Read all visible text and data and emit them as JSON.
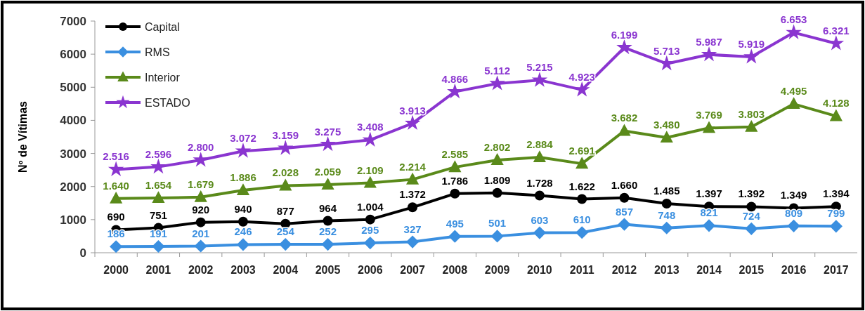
{
  "chart_data": {
    "type": "line",
    "ylabel": "Nº de Vítimas",
    "categories": [
      "2000",
      "2001",
      "2002",
      "2003",
      "2004",
      "2005",
      "2006",
      "2007",
      "2008",
      "2009",
      "2010",
      "2011",
      "2012",
      "2013",
      "2014",
      "2015",
      "2016",
      "2017"
    ],
    "ylim": [
      0,
      7000
    ],
    "yticks": [
      0,
      1000,
      2000,
      3000,
      4000,
      5000,
      6000,
      7000
    ],
    "grid": false,
    "legend": "top left",
    "series": [
      {
        "name": "Capital",
        "color": "#000000",
        "marker": "circle",
        "values": [
          690,
          751,
          920,
          940,
          877,
          964,
          1004,
          1372,
          1786,
          1809,
          1728,
          1622,
          1660,
          1485,
          1397,
          1392,
          1349,
          1394
        ],
        "value_labels": [
          "690",
          "751",
          "920",
          "940",
          "877",
          "964",
          "1.004",
          "1.372",
          "1.786",
          "1.809",
          "1.728",
          "1.622",
          "1.660",
          "1.485",
          "1.397",
          "1.392",
          "1.349",
          "1.394"
        ]
      },
      {
        "name": "RMS",
        "color": "#3a8fe0",
        "marker": "diamond",
        "values": [
          186,
          191,
          201,
          246,
          254,
          252,
          295,
          327,
          495,
          501,
          603,
          610,
          857,
          748,
          821,
          724,
          809,
          799
        ],
        "value_labels": [
          "186",
          "191",
          "201",
          "246",
          "254",
          "252",
          "295",
          "327",
          "495",
          "501",
          "603",
          "610",
          "857",
          "748",
          "821",
          "724",
          "809",
          "799"
        ]
      },
      {
        "name": "Interior",
        "color": "#5a8a1a",
        "marker": "triangle",
        "values": [
          1640,
          1654,
          1679,
          1886,
          2028,
          2059,
          2109,
          2214,
          2585,
          2802,
          2884,
          2691,
          3682,
          3480,
          3769,
          3803,
          4495,
          4128
        ],
        "value_labels": [
          "1.640",
          "1.654",
          "1.679",
          "1.886",
          "2.028",
          "2.059",
          "2.109",
          "2.214",
          "2.585",
          "2.802",
          "2.884",
          "2.691",
          "3.682",
          "3.480",
          "3.769",
          "3.803",
          "4.495",
          "4.128"
        ]
      },
      {
        "name": "ESTADO",
        "color": "#8a35d0",
        "marker": "star",
        "values": [
          2516,
          2596,
          2800,
          3072,
          3159,
          3275,
          3408,
          3913,
          4866,
          5112,
          5215,
          4923,
          6199,
          5713,
          5987,
          5919,
          6653,
          6321
        ],
        "value_labels": [
          "2.516",
          "2.596",
          "2.800",
          "3.072",
          "3.159",
          "3.275",
          "3.408",
          "3.913",
          "4.866",
          "5.112",
          "5.215",
          "4.923",
          "6.199",
          "5.713",
          "5.987",
          "5.919",
          "6.653",
          "6.321"
        ]
      }
    ]
  }
}
